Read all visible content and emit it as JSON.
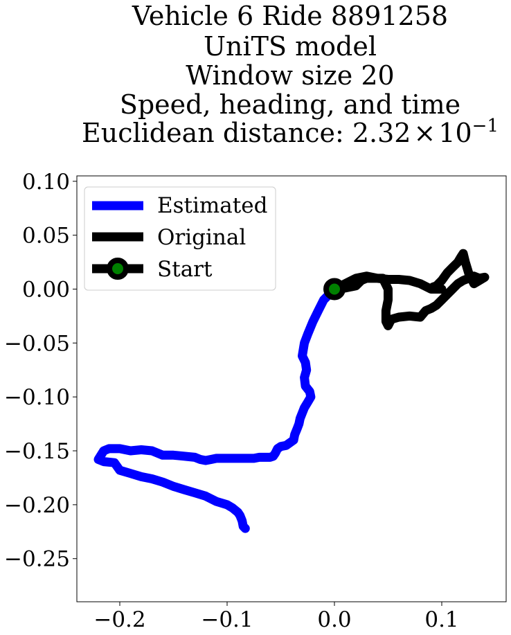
{
  "chart_data": {
    "type": "line",
    "title_lines": [
      "Vehicle 6 Ride 8891258",
      "UniTS model",
      "Window size 20",
      "Speed, heading, and time"
    ],
    "title_metric": {
      "label": "Euclidean distance: ",
      "mantissa": "2.32",
      "times": "×",
      "base": "10",
      "exponent": "−1"
    },
    "xlabel": "",
    "ylabel": "",
    "xlim": [
      -0.24,
      0.16
    ],
    "ylim": [
      -0.29,
      0.105
    ],
    "xticks": [
      -0.2,
      -0.1,
      0.0,
      0.1
    ],
    "xtick_labels": [
      "−0.2",
      "−0.1",
      "0.0",
      "0.1"
    ],
    "yticks": [
      0.1,
      0.05,
      0.0,
      -0.05,
      -0.1,
      -0.15,
      -0.2,
      -0.25
    ],
    "ytick_labels": [
      "0.10",
      "0.05",
      "0.00",
      "−0.05",
      "−0.10",
      "−0.15",
      "−0.20",
      "−0.25"
    ],
    "grid": false,
    "legend_position": "top-left",
    "series": [
      {
        "name": "Estimated",
        "color": "#0000ff",
        "x": [
          0.0,
          -0.005,
          -0.01,
          -0.015,
          -0.02,
          -0.025,
          -0.028,
          -0.03,
          -0.027,
          -0.026,
          -0.028,
          -0.027,
          -0.023,
          -0.022,
          -0.025,
          -0.028,
          -0.03,
          -0.032,
          -0.033,
          -0.035,
          -0.037,
          -0.038,
          -0.045,
          -0.05,
          -0.053,
          -0.055,
          -0.057,
          -0.06,
          -0.065,
          -0.07,
          -0.075,
          -0.08,
          -0.09,
          -0.1,
          -0.11,
          -0.115,
          -0.12,
          -0.125,
          -0.13,
          -0.14,
          -0.15,
          -0.16,
          -0.17,
          -0.18,
          -0.19,
          -0.2,
          -0.205,
          -0.21,
          -0.215,
          -0.22,
          -0.215,
          -0.205,
          -0.2,
          -0.19,
          -0.18,
          -0.17,
          -0.16,
          -0.15,
          -0.14,
          -0.13,
          -0.12,
          -0.11,
          -0.1,
          -0.095,
          -0.09,
          -0.088,
          -0.086,
          -0.085,
          -0.083
        ],
        "y": [
          0.0,
          -0.005,
          -0.01,
          -0.02,
          -0.03,
          -0.042,
          -0.05,
          -0.062,
          -0.068,
          -0.075,
          -0.082,
          -0.09,
          -0.095,
          -0.1,
          -0.105,
          -0.11,
          -0.115,
          -0.12,
          -0.125,
          -0.13,
          -0.135,
          -0.14,
          -0.145,
          -0.146,
          -0.148,
          -0.152,
          -0.155,
          -0.156,
          -0.156,
          -0.156,
          -0.157,
          -0.157,
          -0.157,
          -0.157,
          -0.157,
          -0.158,
          -0.159,
          -0.158,
          -0.156,
          -0.155,
          -0.154,
          -0.154,
          -0.15,
          -0.149,
          -0.15,
          -0.148,
          -0.148,
          -0.148,
          -0.15,
          -0.158,
          -0.16,
          -0.161,
          -0.168,
          -0.171,
          -0.174,
          -0.176,
          -0.179,
          -0.183,
          -0.186,
          -0.189,
          -0.192,
          -0.197,
          -0.2,
          -0.203,
          -0.207,
          -0.21,
          -0.215,
          -0.22,
          -0.222
        ]
      },
      {
        "name": "Original",
        "color": "#000000",
        "x": [
          0.0,
          0.01,
          0.02,
          0.025,
          0.03,
          0.035,
          0.045,
          0.05,
          0.05,
          0.048,
          0.048,
          0.05,
          0.053,
          0.06,
          0.07,
          0.08,
          0.085,
          0.09,
          0.095,
          0.1,
          0.105,
          0.11,
          0.115,
          0.12,
          0.125,
          0.13,
          0.135,
          0.14,
          0.135,
          0.13,
          0.125,
          0.122,
          0.12,
          0.118,
          0.115,
          0.11,
          0.105,
          0.1,
          0.095,
          0.092,
          0.1,
          0.09,
          0.08,
          0.07,
          0.06,
          0.05,
          0.04,
          0.03,
          0.02,
          0.01,
          0.0
        ],
        "y": [
          0.0,
          0.001,
          0.003,
          0.008,
          0.01,
          0.01,
          0.01,
          0.0,
          -0.01,
          -0.02,
          -0.03,
          -0.034,
          -0.028,
          -0.026,
          -0.025,
          -0.026,
          -0.02,
          -0.018,
          -0.015,
          -0.01,
          -0.005,
          0.0,
          0.005,
          0.008,
          0.01,
          0.012,
          0.01,
          0.011,
          0.008,
          0.005,
          0.015,
          0.025,
          0.033,
          0.03,
          0.025,
          0.02,
          0.015,
          0.008,
          0.003,
          0.002,
          0.0,
          0.0,
          0.005,
          0.008,
          0.009,
          0.009,
          0.01,
          0.012,
          0.01,
          0.005,
          0.0
        ]
      },
      {
        "name": "Start",
        "color": "#000000",
        "marker_face": "#008000",
        "x": [
          0.0
        ],
        "y": [
          0.0
        ]
      }
    ]
  }
}
